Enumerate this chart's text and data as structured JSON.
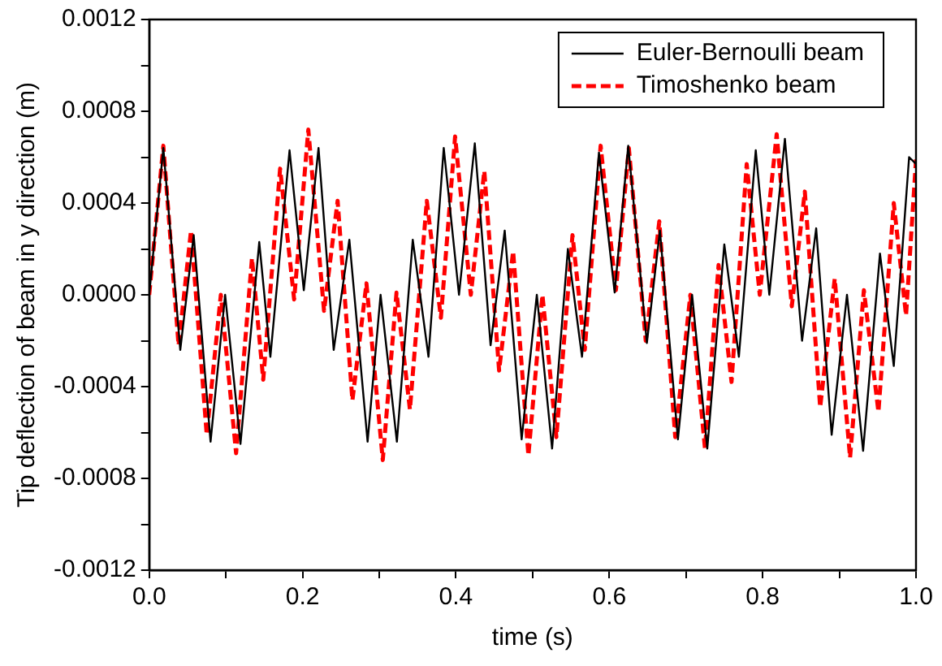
{
  "chart_data": {
    "type": "line",
    "xlabel": "time (s)",
    "ylabel": "Tip deflection of beam in y direction (m)",
    "xlim": [
      0,
      1
    ],
    "ylim": [
      -0.0012,
      0.0012
    ],
    "xticks": [
      {
        "value": 0,
        "label": "0.0"
      },
      {
        "value": 0.1,
        "label": null
      },
      0.2,
      {
        "value": 0.3,
        "label": null
      },
      0.4,
      {
        "value": 0.5,
        "label": null
      },
      0.6,
      {
        "value": 0.7,
        "label": null
      },
      0.8,
      {
        "value": 0.9,
        "label": null
      },
      {
        "value": 1,
        "label": "1.0"
      }
    ],
    "yticks": [
      -0.0012,
      {
        "value": -0.001,
        "label": null
      },
      -0.0008,
      {
        "value": -0.0006,
        "label": null
      },
      -0.0004,
      {
        "value": -0.0002,
        "label": null
      },
      {
        "value": 0,
        "label": "0.0000"
      },
      {
        "value": 0.0002,
        "label": null
      },
      0.0004,
      {
        "value": 0.0006,
        "label": null
      },
      0.0008,
      {
        "value": 0.001,
        "label": null
      },
      0.0012
    ],
    "grid": false,
    "legend": "top right",
    "marker": "none",
    "series": [
      {
        "name": "Euler-Bernoulli beam",
        "color": "#000000",
        "line_style": "solid",
        "x": [
          0,
          0.0184,
          0.0405,
          0.058,
          0.08,
          0.099,
          0.119,
          0.1435,
          0.158,
          0.183,
          0.2016,
          0.2208,
          0.2406,
          0.261,
          0.2848,
          0.3017,
          0.323,
          0.3437,
          0.3642,
          0.3841,
          0.404,
          0.4246,
          0.4452,
          0.4636,
          0.4857,
          0.5055,
          0.5254,
          0.546,
          0.5644,
          0.5865,
          0.607,
          0.6247,
          0.649,
          0.666,
          0.6895,
          0.708,
          0.7278,
          0.75,
          0.769,
          0.791,
          0.8087,
          0.829,
          0.8514,
          0.8698,
          0.89,
          0.91,
          0.931,
          0.953,
          0.971,
          0.991,
          1
        ],
        "values": [
          0,
          0.00064,
          -0.00024,
          0.00026,
          -0.00064,
          0,
          -0.00065,
          0.00023,
          -0.00027,
          0.00063,
          2e-05,
          0.00064,
          -0.00024,
          0.00024,
          -0.00064,
          0,
          -0.00064,
          0.00024,
          -0.00027,
          0.00064,
          0,
          0.00066,
          -0.00022,
          0.00028,
          -0.00063,
          0,
          -0.00067,
          0.0002,
          -0.00027,
          0.00062,
          1e-05,
          0.00065,
          -0.00021,
          0.00028,
          -0.00063,
          0,
          -0.00067,
          0.00022,
          -0.00027,
          0.00063,
          0,
          0.00068,
          -0.0002,
          0.00029,
          -0.00061,
          0,
          -0.00068,
          0.00018,
          -0.00031,
          0.0006,
          0.00057
        ]
      },
      {
        "name": "Timoshenko beam",
        "color": "#ff0000",
        "line_style": "dashed",
        "x": [
          0,
          0.0184,
          0.0383,
          0.0545,
          0.075,
          0.0934,
          0.1133,
          0.134,
          0.1487,
          0.1707,
          0.189,
          0.2075,
          0.228,
          0.2457,
          0.265,
          0.2833,
          0.3046,
          0.3225,
          0.34,
          0.362,
          0.3804,
          0.3989,
          0.4194,
          0.437,
          0.4563,
          0.4746,
          0.4945,
          0.5128,
          0.531,
          0.552,
          0.568,
          0.5887,
          0.6086,
          0.6255,
          0.6475,
          0.6652,
          0.686,
          0.7057,
          0.7248,
          0.7425,
          0.7594,
          0.7792,
          0.7962,
          0.8183,
          0.838,
          0.855,
          0.875,
          0.894,
          0.914,
          0.932,
          0.951,
          0.971,
          0.987,
          1
        ],
        "values": [
          0,
          0.00065,
          -0.00022,
          0.00028,
          -0.00061,
          0,
          -0.00069,
          0.00016,
          -0.00037,
          0.00055,
          -2e-05,
          0.00072,
          -7e-05,
          0.00041,
          -0.00046,
          5e-05,
          -0.00072,
          1e-05,
          -0.0005,
          0.00041,
          -0.0001,
          0.00069,
          0,
          0.00054,
          -0.00033,
          0.00019,
          -0.0007,
          0,
          -0.00062,
          0.00026,
          -0.00024,
          0.00065,
          2e-05,
          0.00064,
          -0.0002,
          0.00032,
          -0.00062,
          0,
          -0.00067,
          0.00013,
          -0.00038,
          0.00057,
          0,
          0.0007,
          -5e-05,
          0.00045,
          -0.00049,
          7e-05,
          -0.00071,
          2e-05,
          -0.00051,
          0.0004,
          -9e-05,
          0.00059
        ]
      }
    ]
  }
}
